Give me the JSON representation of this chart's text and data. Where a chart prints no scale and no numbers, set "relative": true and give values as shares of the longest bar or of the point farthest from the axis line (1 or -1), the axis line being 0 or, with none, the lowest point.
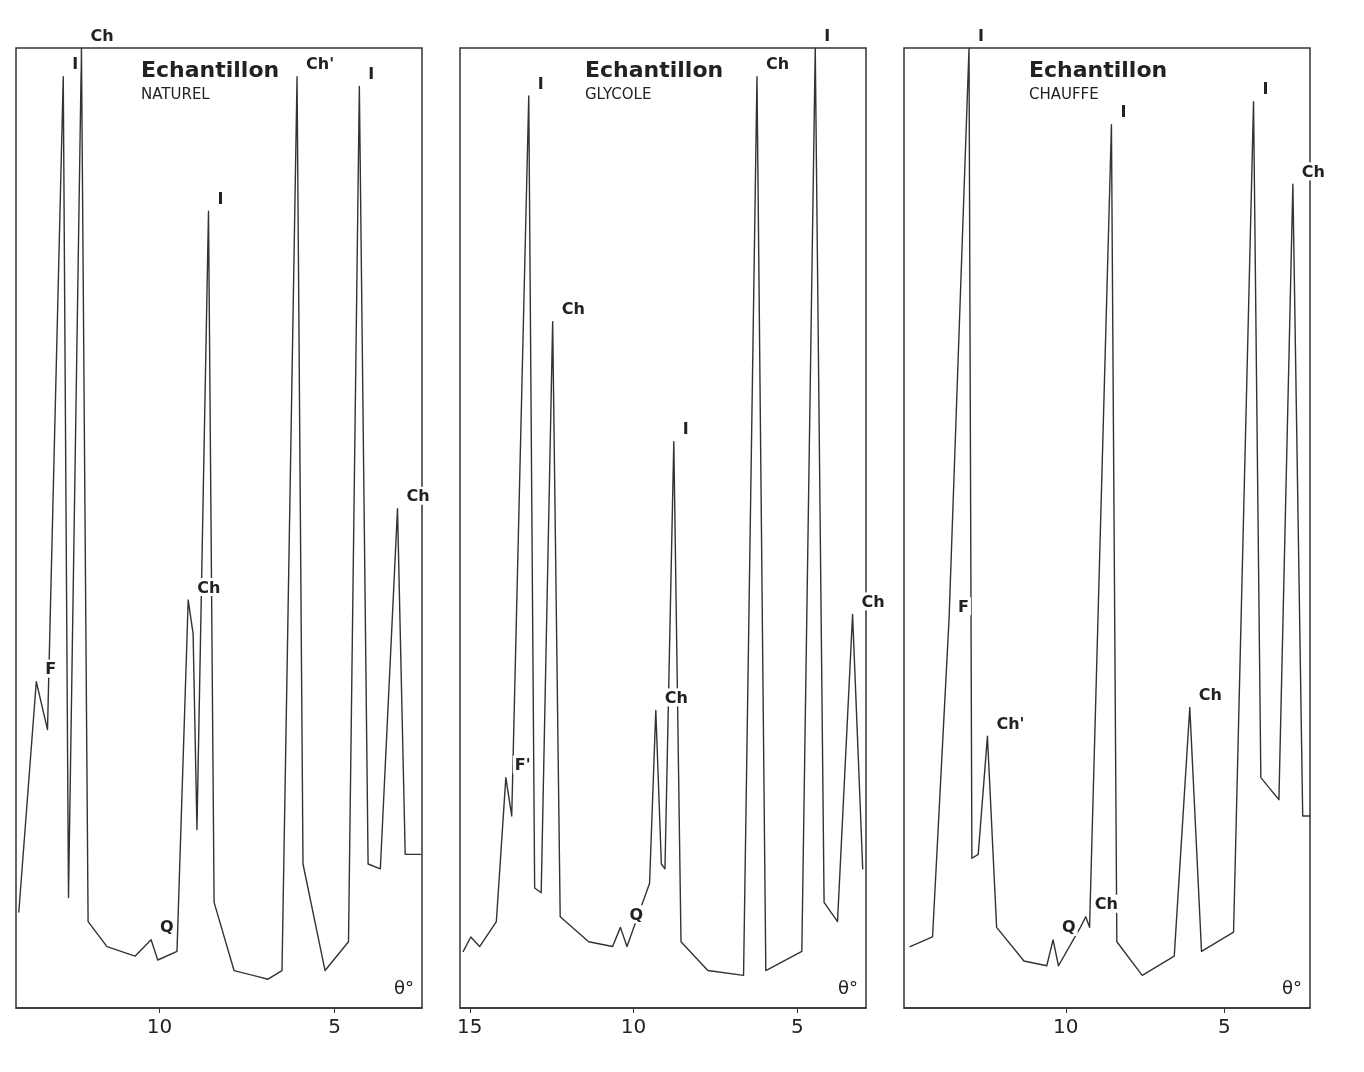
{
  "chart_data": [
    {
      "type": "line",
      "title": "Echantillon",
      "subtitle": "NATUREL",
      "xlabel": "θ°",
      "relative": true,
      "grid": false,
      "xlim": [
        14.1,
        2.5
      ],
      "xticks": [
        10,
        5
      ],
      "series": [
        {
          "color": "#333333",
          "x": [
            14.02,
            13.52,
            13.2,
            12.75,
            12.6,
            12.23,
            12.04,
            11.5,
            10.7,
            10.24,
            10.05,
            9.5,
            9.18,
            9.04,
            8.93,
            8.6,
            8.44,
            7.87,
            6.9,
            6.5,
            6.07,
            5.9,
            5.27,
            4.6,
            4.29,
            4.04,
            3.69,
            3.2,
            2.98,
            2.54
          ],
          "values": [
            0.1,
            0.34,
            0.29,
            0.97,
            0.115,
            1,
            0.09,
            0.064,
            0.054,
            0.071,
            0.05,
            0.059,
            0.425,
            0.39,
            0.186,
            0.83,
            0.11,
            0.039,
            0.03,
            0.039,
            0.97,
            0.15,
            0.039,
            0.069,
            0.96,
            0.15,
            0.145,
            0.52,
            0.16,
            0.16
          ]
        }
      ],
      "annotations": [
        {
          "text": "I",
          "x": 12.75,
          "y": 0.97
        },
        {
          "text": "Ch",
          "x": 12.23,
          "y": 1
        },
        {
          "text": "Ch",
          "x": 9.18,
          "y": 0.425
        },
        {
          "text": "I",
          "x": 8.6,
          "y": 0.83
        },
        {
          "text": "Ch'",
          "x": 6.07,
          "y": 0.97
        },
        {
          "text": "I",
          "x": 4.29,
          "y": 0.96
        },
        {
          "text": "Ch",
          "x": 3.2,
          "y": 0.52
        },
        {
          "text": "F",
          "x": 13.52,
          "y": 0.34
        },
        {
          "text": "Q",
          "x": 10.24,
          "y": 0.071
        }
      ]
    },
    {
      "type": "line",
      "title": "Echantillon",
      "subtitle": "GLYCOLE",
      "xlabel": "θ°",
      "relative": true,
      "grid": false,
      "xlim": [
        15.3,
        2.9
      ],
      "xticks": [
        15,
        10,
        5
      ],
      "series": [
        {
          "color": "#333333",
          "x": [
            15.2,
            14.97,
            14.7,
            14.19,
            13.9,
            13.72,
            13.2,
            13.02,
            12.82,
            12.47,
            12.24,
            11.37,
            10.64,
            10.4,
            10.2,
            9.51,
            9.32,
            9.15,
            9.04,
            8.77,
            8.55,
            7.73,
            6.64,
            6.23,
            5.96,
            4.86,
            4.45,
            4.18,
            3.77,
            3.31,
            3.0
          ],
          "values": [
            0.059,
            0.074,
            0.064,
            0.09,
            0.24,
            0.2,
            0.95,
            0.125,
            0.12,
            0.715,
            0.095,
            0.069,
            0.064,
            0.084,
            0.064,
            0.13,
            0.31,
            0.15,
            0.145,
            0.59,
            0.069,
            0.039,
            0.034,
            0.97,
            0.039,
            0.059,
            1,
            0.11,
            0.09,
            0.41,
            0.145
          ]
        }
      ],
      "annotations": [
        {
          "text": "I",
          "x": 13.2,
          "y": 0.95
        },
        {
          "text": "Ch",
          "x": 12.47,
          "y": 0.715
        },
        {
          "text": "Ch",
          "x": 9.32,
          "y": 0.31
        },
        {
          "text": "I",
          "x": 8.77,
          "y": 0.59
        },
        {
          "text": "Ch",
          "x": 6.23,
          "y": 0.97
        },
        {
          "text": "I",
          "x": 4.45,
          "y": 1
        },
        {
          "text": "Ch",
          "x": 3.31,
          "y": 0.41
        },
        {
          "text": "F'",
          "x": 13.9,
          "y": 0.24
        },
        {
          "text": "Q",
          "x": 10.4,
          "y": 0.084
        }
      ]
    },
    {
      "type": "line",
      "title": "Echantillon",
      "subtitle": "CHAUFFE",
      "xlabel": "θ°",
      "relative": true,
      "grid": false,
      "xlim": [
        15.1,
        2.3
      ],
      "xticks": [
        10,
        5
      ],
      "series": [
        {
          "color": "#333333",
          "x": [
            14.91,
            14.2,
            13.68,
            13.05,
            12.96,
            12.76,
            12.47,
            12.18,
            11.32,
            10.6,
            10.4,
            10.23,
            9.54,
            9.37,
            9.25,
            8.56,
            8.39,
            7.59,
            6.58,
            6.09,
            5.72,
            4.71,
            4.08,
            3.85,
            3.28,
            2.84,
            2.53,
            2.3
          ],
          "values": [
            0.064,
            0.074,
            0.405,
            1,
            0.156,
            0.16,
            0.283,
            0.084,
            0.049,
            0.044,
            0.071,
            0.044,
            0.084,
            0.095,
            0.084,
            0.92,
            0.069,
            0.034,
            0.054,
            0.313,
            0.059,
            0.079,
            0.944,
            0.24,
            0.217,
            0.858,
            0.2,
            0.2
          ]
        }
      ],
      "annotations": [
        {
          "text": "I",
          "x": 13.05,
          "y": 1
        },
        {
          "text": "I",
          "x": 8.56,
          "y": 0.92
        },
        {
          "text": "Ch'",
          "x": 12.47,
          "y": 0.283
        },
        {
          "text": "F",
          "x": 13.68,
          "y": 0.405
        },
        {
          "text": "Q",
          "x": 10.4,
          "y": 0.071
        },
        {
          "text": "Ch",
          "x": 9.37,
          "y": 0.095
        },
        {
          "text": "Ch",
          "x": 6.09,
          "y": 0.313
        },
        {
          "text": "I",
          "x": 4.08,
          "y": 0.944
        },
        {
          "text": "Ch",
          "x": 2.84,
          "y": 0.858
        }
      ]
    }
  ]
}
